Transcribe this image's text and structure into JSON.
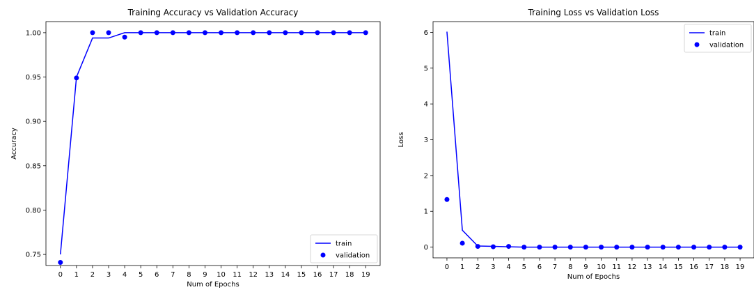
{
  "chart_data": [
    {
      "type": "line",
      "title": "Training Accuracy vs Validation Accuracy",
      "xlabel": "Num of Epochs",
      "ylabel": "Accuracy",
      "x": [
        0,
        1,
        2,
        3,
        4,
        5,
        6,
        7,
        8,
        9,
        10,
        11,
        12,
        13,
        14,
        15,
        16,
        17,
        18,
        19
      ],
      "xticks": [
        "0",
        "1",
        "2",
        "3",
        "4",
        "5",
        "6",
        "7",
        "8",
        "9",
        "10",
        "11",
        "12",
        "13",
        "14",
        "15",
        "16",
        "17",
        "18",
        "19"
      ],
      "yticks": [
        0.75,
        0.8,
        0.85,
        0.9,
        0.95,
        1.0
      ],
      "ytick_labels": [
        "0.75",
        "0.80",
        "0.85",
        "0.90",
        "0.95",
        "1.00"
      ],
      "xlim": [
        -0.9,
        19.9
      ],
      "ylim": [
        0.7375,
        1.0125
      ],
      "grid": false,
      "legend": "lower right",
      "series": [
        {
          "name": "train",
          "style": "line",
          "color": "#0000ff",
          "values": [
            0.75,
            0.95,
            0.994,
            0.994,
            1.0,
            1.0,
            1.0,
            1.0,
            1.0,
            1.0,
            1.0,
            1.0,
            1.0,
            1.0,
            1.0,
            1.0,
            1.0,
            1.0,
            1.0,
            1.0
          ]
        },
        {
          "name": "validation",
          "style": "markers",
          "color": "#0000ff",
          "values": [
            0.741,
            0.949,
            1.0,
            1.0,
            0.995,
            1.0,
            1.0,
            1.0,
            1.0,
            1.0,
            1.0,
            1.0,
            1.0,
            1.0,
            1.0,
            1.0,
            1.0,
            1.0,
            1.0,
            1.0
          ]
        }
      ]
    },
    {
      "type": "line",
      "title": "Training Loss vs Validation Loss",
      "xlabel": "Num of Epochs",
      "ylabel": "Loss",
      "x": [
        0,
        1,
        2,
        3,
        4,
        5,
        6,
        7,
        8,
        9,
        10,
        11,
        12,
        13,
        14,
        15,
        16,
        17,
        18,
        19
      ],
      "xticks": [
        "0",
        "1",
        "2",
        "3",
        "4",
        "5",
        "6",
        "7",
        "8",
        "9",
        "10",
        "11",
        "12",
        "13",
        "14",
        "15",
        "16",
        "17",
        "18",
        "19"
      ],
      "yticks": [
        0,
        1,
        2,
        3,
        4,
        5,
        6
      ],
      "ytick_labels": [
        "0",
        "1",
        "2",
        "3",
        "4",
        "5",
        "6"
      ],
      "xlim": [
        -0.9,
        19.9
      ],
      "ylim": [
        -0.3,
        6.3
      ],
      "grid": false,
      "legend": "upper right",
      "series": [
        {
          "name": "train",
          "style": "line",
          "color": "#0000ff",
          "values": [
            6.02,
            0.47,
            0.03,
            0.02,
            0.01,
            0,
            0,
            0,
            0,
            0,
            0,
            0,
            0,
            0,
            0,
            0,
            0,
            0,
            0,
            0
          ]
        },
        {
          "name": "validation",
          "style": "markers",
          "color": "#0000ff",
          "values": [
            1.33,
            0.11,
            0.02,
            0.01,
            0.02,
            0,
            0,
            0,
            0,
            0,
            0,
            0,
            0,
            0,
            0,
            0,
            0,
            0,
            0,
            0
          ]
        }
      ]
    }
  ]
}
